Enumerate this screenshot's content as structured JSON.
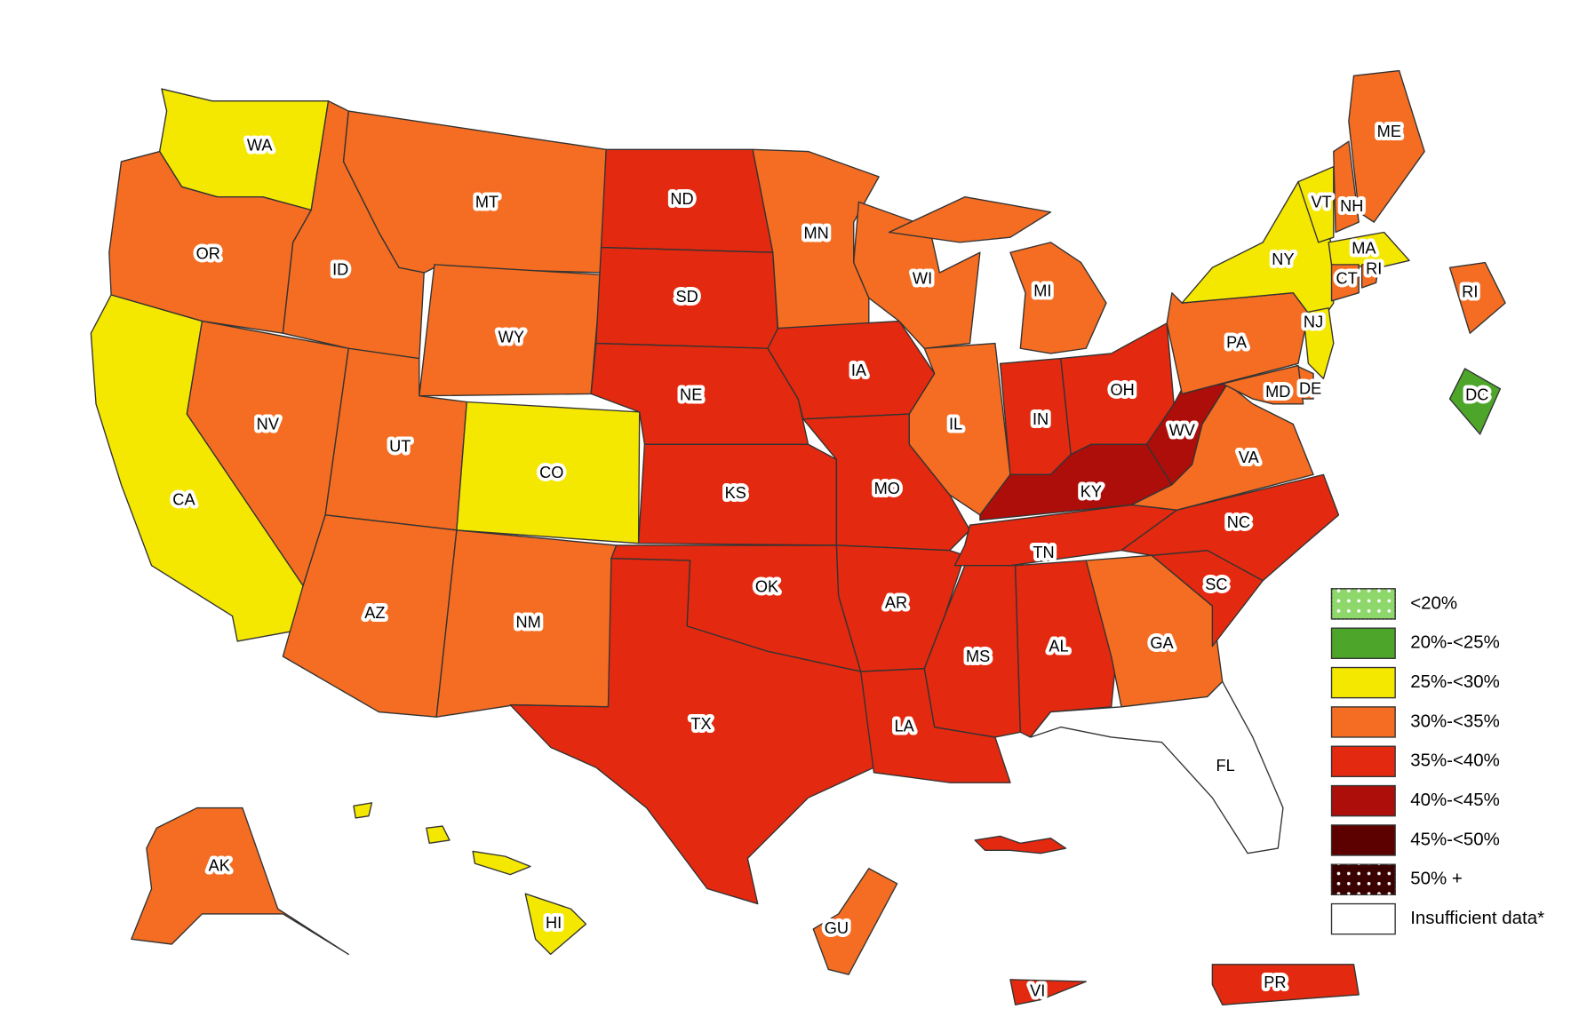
{
  "states": [
    {
      "label": "WA",
      "color": "#f5e800"
    },
    {
      "label": "OR",
      "color": "#f46d22"
    },
    {
      "label": "CA",
      "color": "#f5e800"
    },
    {
      "label": "NV",
      "color": "#f46d22"
    },
    {
      "label": "ID",
      "color": "#f46d22"
    },
    {
      "label": "MT",
      "color": "#f46d22"
    },
    {
      "label": "WY",
      "color": "#f46d22"
    },
    {
      "label": "UT",
      "color": "#f46d22"
    },
    {
      "label": "CO",
      "color": "#f5e800"
    },
    {
      "label": "AZ",
      "color": "#f46d22"
    },
    {
      "label": "NM",
      "color": "#f46d22"
    },
    {
      "label": "ND",
      "color": "#e3290f"
    },
    {
      "label": "SD",
      "color": "#e3290f"
    },
    {
      "label": "NE",
      "color": "#e3290f"
    },
    {
      "label": "KS",
      "color": "#e3290f"
    },
    {
      "label": "OK",
      "color": "#e3290f"
    },
    {
      "label": "TX",
      "color": "#e3290f"
    },
    {
      "label": "MN",
      "color": "#f46d22"
    },
    {
      "label": "IA",
      "color": "#e3290f"
    },
    {
      "label": "MO",
      "color": "#e3290f"
    },
    {
      "label": "AR",
      "color": "#e3290f"
    },
    {
      "label": "LA",
      "color": "#e3290f"
    },
    {
      "label": "WI",
      "color": "#f46d22"
    },
    {
      "label": "IL",
      "color": "#f46d22"
    },
    {
      "label": "MI",
      "color": "#f46d22"
    },
    {
      "label": "IN",
      "color": "#e3290f"
    },
    {
      "label": "OH",
      "color": "#e3290f"
    },
    {
      "label": "KY",
      "color": "#ad0e0a"
    },
    {
      "label": "WV",
      "color": "#ad0e0a"
    },
    {
      "label": "TN",
      "color": "#e3290f"
    },
    {
      "label": "MS",
      "color": "#e3290f"
    },
    {
      "label": "AL",
      "color": "#e3290f"
    },
    {
      "label": "GA",
      "color": "#f46d22"
    },
    {
      "label": "FL",
      "color": "#ffffff"
    },
    {
      "label": "SC",
      "color": "#e3290f"
    },
    {
      "label": "NC",
      "color": "#e3290f"
    },
    {
      "label": "VA",
      "color": "#f46d22"
    },
    {
      "label": "PA",
      "color": "#f46d22"
    },
    {
      "label": "NY",
      "color": "#f5e800"
    },
    {
      "label": "VT",
      "color": "#f5e800"
    },
    {
      "label": "NH",
      "color": "#f46d22"
    },
    {
      "label": "ME",
      "color": "#f46d22"
    },
    {
      "label": "MA",
      "color": "#f5e800"
    },
    {
      "label": "CT",
      "color": "#f46d22"
    },
    {
      "label": "RI",
      "color": "#f46d22"
    },
    {
      "label": "NJ",
      "color": "#f5e800"
    },
    {
      "label": "DE",
      "color": "#f46d22"
    },
    {
      "label": "MD",
      "color": "#f46d22"
    },
    {
      "label": "DC",
      "color": "#4da52a"
    },
    {
      "label": "AK",
      "color": "#f46d22"
    },
    {
      "label": "HI",
      "color": "#f5e800"
    },
    {
      "label": "GU",
      "color": "#f46d22"
    },
    {
      "label": "PR",
      "color": "#e3290f"
    },
    {
      "label": "VI",
      "color": "#e3290f"
    }
  ],
  "legend": [
    {
      "label": "<20%",
      "color": "#8ed86b",
      "pattern": "dots"
    },
    {
      "label": "20%-<25%",
      "color": "#4da52a"
    },
    {
      "label": "25%-<30%",
      "color": "#f5e800"
    },
    {
      "label": "30%-<35%",
      "color": "#f46d22"
    },
    {
      "label": "35%-<40%",
      "color": "#e3290f"
    },
    {
      "label": "40%-<45%",
      "color": "#ad0e0a"
    },
    {
      "label": "45%-<50%",
      "color": "#5c0000"
    },
    {
      "label": "50% +",
      "color": "#3a0000",
      "pattern": "dots"
    },
    {
      "label": "Insufficient data*",
      "color": "#ffffff"
    }
  ]
}
